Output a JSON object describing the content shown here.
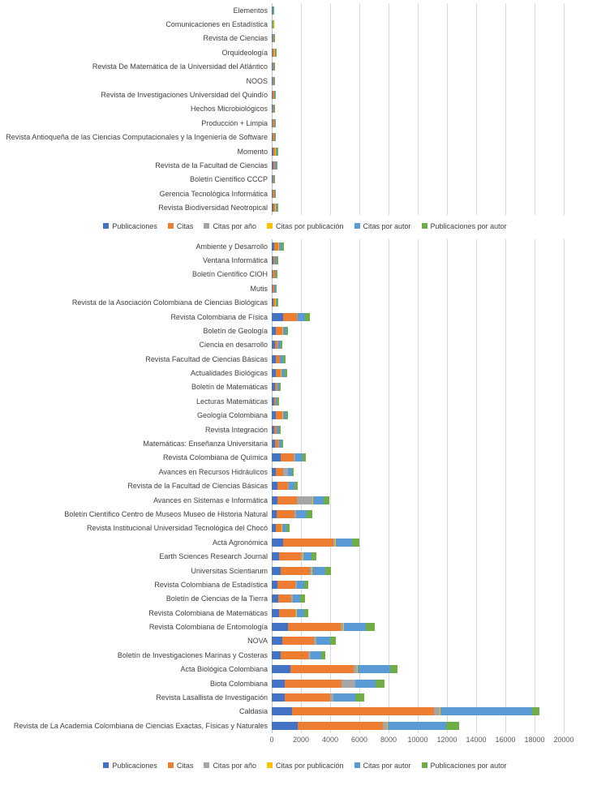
{
  "legend_series": [
    {
      "name": "Publicaciones",
      "color": "#4472C4"
    },
    {
      "name": "Citas",
      "color": "#ED7D31"
    },
    {
      "name": "Citas por año",
      "color": "#A5A5A5"
    },
    {
      "name": "Citas por publicación",
      "color": "#FFC000"
    },
    {
      "name": "Citas por autor",
      "color": "#5B9BD5"
    },
    {
      "name": "Publicaciones por autor",
      "color": "#70AD47"
    }
  ],
  "chart_data": [
    {
      "type": "bar",
      "orientation": "horizontal-stacked",
      "title": "",
      "xlim": [
        0,
        20000
      ],
      "xtick_step": 2000,
      "grid": true,
      "x_axis_labels_visible": false,
      "legend_position": "bottom",
      "categories": [
        "Elementos",
        "Comunicaciones en Estadística",
        "Revista de Ciencias",
        "Orquideología",
        "Revista De Matemática de la Universidad del Atlántico",
        "NOOS",
        "Revista de Investigaciones Universidad del Quindío",
        "Hechos Microbiológicos",
        "Producción + Limpia",
        "Revista Antioqueña de las Ciencias Computacionales y la Ingeniería de Software",
        "Momento",
        "Revista de la Facultad de Ciencias",
        "Boletín Científico CCCP",
        "Gerencia Tecnológica Informática",
        "Revista Biodiversidad Neotropical"
      ],
      "series": [
        {
          "name": "Publicaciones",
          "color": "#4472C4",
          "values": [
            30,
            35,
            45,
            70,
            45,
            55,
            65,
            50,
            70,
            70,
            100,
            85,
            50,
            70,
            100
          ]
        },
        {
          "name": "Citas",
          "color": "#ED7D31",
          "values": [
            40,
            40,
            50,
            110,
            45,
            60,
            75,
            65,
            90,
            90,
            130,
            115,
            65,
            90,
            130
          ]
        },
        {
          "name": "Citas por año",
          "color": "#A5A5A5",
          "values": [
            6,
            6,
            8,
            12,
            8,
            8,
            10,
            8,
            12,
            12,
            15,
            12,
            8,
            12,
            15
          ]
        },
        {
          "name": "Citas por publicación",
          "color": "#FFC000",
          "values": [
            4,
            4,
            5,
            8,
            5,
            5,
            6,
            5,
            6,
            6,
            8,
            8,
            5,
            6,
            8
          ]
        },
        {
          "name": "Citas por autor",
          "color": "#5B9BD5",
          "values": [
            40,
            40,
            45,
            90,
            45,
            55,
            60,
            55,
            70,
            70,
            100,
            90,
            55,
            70,
            100
          ]
        },
        {
          "name": "Publicaciones por autor",
          "color": "#70AD47",
          "values": [
            30,
            30,
            35,
            60,
            35,
            45,
            50,
            45,
            55,
            55,
            75,
            60,
            45,
            55,
            75
          ]
        }
      ]
    },
    {
      "type": "bar",
      "orientation": "horizontal-stacked",
      "title": "",
      "xlim": [
        0,
        20000
      ],
      "xtick_step": 2000,
      "grid": true,
      "x_axis_labels_visible": true,
      "xtick_labels": [
        "0",
        "2000",
        "4000",
        "6000",
        "8000",
        "10000",
        "12000",
        "14000",
        "16000",
        "18000",
        "20000"
      ],
      "legend_position": "bottom",
      "categories": [
        "Ambiente y Desarrollo",
        "Ventana Informática",
        "Boletín Científico CIOH",
        "Mutis",
        "Revista de la Asociación Colombiana de Ciencias Biológicas",
        "Revista Colombiana de Física",
        "Boletín de Geología",
        "Ciencia en desarrollo",
        "Revista Facultad de Ciencias Básicas",
        "Actualidades Biológicas",
        "Boletín de Matemáticas",
        "Lecturas Matemáticas",
        "Geología Colombiana",
        "Revista Integración",
        "Matemáticas: Enseñanza Universitaria",
        "Revista Colombiana de Química",
        "Avances en Recursos Hidráulicos",
        "Revista de la Facultad de Ciencias Básicas",
        "Avances en Sistemas e Informática",
        "Boletín Científico Centro de Museos Museo de Historia Natural",
        "Revista Institucional Universidad Tecnológica del Chocó",
        "Acta Agronómica",
        "Earth Sciences Research Journal",
        "Universitas Scientiarum",
        "Revista Colombiana de Estadística",
        "Boletín de Ciencias de la Tierra",
        "Revista Colombiana de Matemáticas",
        "Revista Colombiana de Entomología",
        "NOVA",
        "Boletín de Investigaciones Marinas y Costeras",
        "Acta Biológica Colombiana",
        "Biota Colombiana",
        "Revista Lasallista de Investigación",
        "Caldasia",
        "Revista de La Academia Colombiana de Ciencias Exactas, Físicas y Naturales"
      ],
      "series": [
        {
          "name": "Publicaciones",
          "color": "#4472C4",
          "values": [
            150,
            120,
            80,
            60,
            100,
            800,
            300,
            200,
            250,
            250,
            200,
            150,
            300,
            180,
            200,
            600,
            250,
            400,
            400,
            350,
            250,
            800,
            500,
            600,
            400,
            450,
            500,
            1100,
            700,
            600,
            1300,
            900,
            900,
            1400,
            1800
          ]
        },
        {
          "name": "Citas",
          "color": "#ED7D31",
          "values": [
            280,
            100,
            120,
            100,
            130,
            900,
            400,
            200,
            280,
            350,
            150,
            120,
            400,
            150,
            250,
            900,
            500,
            700,
            1300,
            1200,
            400,
            3400,
            1500,
            2000,
            1200,
            900,
            1100,
            3600,
            2200,
            1900,
            4300,
            3900,
            3100,
            9700,
            5800
          ]
        },
        {
          "name": "Citas por año",
          "color": "#A5A5A5",
          "values": [
            30,
            15,
            15,
            15,
            15,
            80,
            40,
            25,
            30,
            35,
            20,
            15,
            40,
            20,
            30,
            90,
            350,
            60,
            1100,
            100,
            40,
            150,
            120,
            150,
            100,
            80,
            90,
            200,
            150,
            150,
            250,
            900,
            200,
            400,
            300
          ]
        },
        {
          "name": "Citas por publicación",
          "color": "#FFC000",
          "values": [
            20,
            10,
            10,
            10,
            10,
            20,
            15,
            15,
            15,
            15,
            10,
            10,
            15,
            10,
            15,
            20,
            20,
            20,
            30,
            25,
            20,
            30,
            30,
            30,
            25,
            25,
            25,
            30,
            30,
            30,
            40,
            40,
            40,
            50,
            50
          ]
        },
        {
          "name": "Citas por autor",
          "color": "#5B9BD5",
          "values": [
            200,
            100,
            80,
            80,
            100,
            500,
            250,
            150,
            200,
            250,
            120,
            100,
            250,
            130,
            180,
            500,
            250,
            400,
            700,
            700,
            300,
            1100,
            600,
            900,
            500,
            500,
            500,
            1500,
            900,
            700,
            2200,
            1400,
            1500,
            6300,
            4000
          ]
        },
        {
          "name": "Publicaciones por autor",
          "color": "#70AD47",
          "values": [
            150,
            80,
            60,
            60,
            80,
            300,
            100,
            130,
            150,
            130,
            100,
            80,
            120,
            100,
            120,
            250,
            150,
            200,
            400,
            400,
            200,
            500,
            300,
            400,
            250,
            300,
            300,
            600,
            400,
            300,
            500,
            600,
            600,
            500,
            900
          ]
        }
      ]
    }
  ]
}
